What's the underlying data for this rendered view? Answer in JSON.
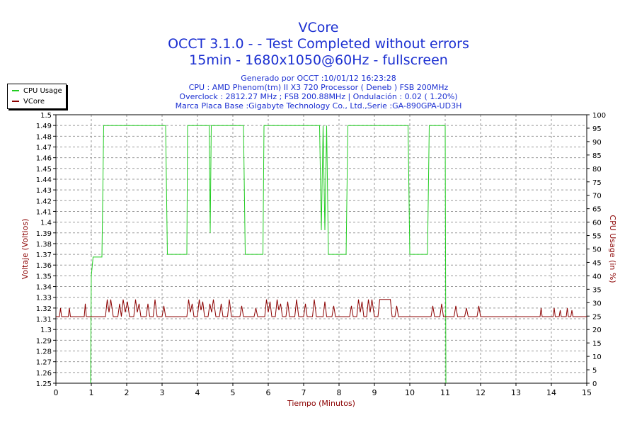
{
  "chart": {
    "title_lines": [
      "VCore",
      "OCCT 3.1.0 -  - Test Completed without errors",
      "15min - 1680x1050@60Hz - fullscreen"
    ],
    "subtitle_lines": [
      "Generado por OCCT :10/01/12 16:23:28",
      "CPU : AMD Phenom(tm) II X3 720 Processor ( Deneb ) FSB 200MHz",
      "Overclock : 2812.27 MHz ; FSB 200.88MHz | Ondulación : 0.02 ( 1.20%)",
      "Marca Placa Base :Gigabyte Technology Co., Ltd.,Serie :GA-890GPA-UD3H"
    ]
  },
  "legend": {
    "placement": "top-left",
    "items": [
      {
        "label": "CPU Usage",
        "color": "#22cc22"
      },
      {
        "label": "VCore",
        "color": "#8b0000"
      }
    ]
  },
  "chart_data": {
    "type": "line",
    "xlabel": "Tiempo (Minutos)",
    "ylabel": "Voltaje (Voltios)",
    "y2label": "CPU Usage (in %)",
    "xlim": [
      0,
      15
    ],
    "ylim": [
      1.25,
      1.5
    ],
    "y2lim": [
      0,
      100
    ],
    "grid": true,
    "x_ticks": [
      "0",
      "1",
      "2",
      "3",
      "4",
      "5",
      "6",
      "7",
      "8",
      "9",
      "10",
      "11",
      "12",
      "13",
      "14",
      "15"
    ],
    "y_ticks": [
      "1.25",
      "1.26",
      "1.27",
      "1.28",
      "1.29",
      "1.3",
      "1.31",
      "1.32",
      "1.33",
      "1.34",
      "1.35",
      "1.36",
      "1.37",
      "1.38",
      "1.39",
      "1.4",
      "1.41",
      "1.42",
      "1.43",
      "1.44",
      "1.45",
      "1.46",
      "1.47",
      "1.48",
      "1.49",
      "1.5"
    ],
    "y2_ticks": [
      "0",
      "5",
      "10",
      "15",
      "20",
      "25",
      "30",
      "35",
      "40",
      "45",
      "50",
      "55",
      "60",
      "65",
      "70",
      "75",
      "80",
      "85",
      "90",
      "95",
      "100"
    ],
    "series": [
      {
        "name": "CPU Usage",
        "axis": "right",
        "color": "#22cc22",
        "points": [
          [
            0.98,
            0
          ],
          [
            1.0,
            40
          ],
          [
            1.05,
            47
          ],
          [
            1.3,
            47
          ],
          [
            1.35,
            96
          ],
          [
            3.1,
            96
          ],
          [
            3.15,
            48
          ],
          [
            3.7,
            48
          ],
          [
            3.72,
            96
          ],
          [
            4.33,
            96
          ],
          [
            4.36,
            56
          ],
          [
            4.39,
            96
          ],
          [
            5.3,
            96
          ],
          [
            5.35,
            48
          ],
          [
            5.85,
            48
          ],
          [
            5.88,
            96
          ],
          [
            7.45,
            96
          ],
          [
            7.5,
            57
          ],
          [
            7.55,
            96
          ],
          [
            7.6,
            57
          ],
          [
            7.65,
            96
          ],
          [
            7.7,
            48
          ],
          [
            8.2,
            48
          ],
          [
            8.25,
            96
          ],
          [
            9.95,
            96
          ],
          [
            10.0,
            48
          ],
          [
            10.5,
            48
          ],
          [
            10.55,
            96
          ],
          [
            11.0,
            96
          ],
          [
            11.02,
            0
          ]
        ]
      },
      {
        "name": "VCore",
        "axis": "left",
        "color": "#8b0000",
        "points": [
          [
            0,
            1.312
          ],
          [
            0.1,
            1.312
          ],
          [
            0.13,
            1.32
          ],
          [
            0.16,
            1.312
          ],
          [
            0.35,
            1.312
          ],
          [
            0.38,
            1.32
          ],
          [
            0.41,
            1.312
          ],
          [
            0.8,
            1.312
          ],
          [
            0.83,
            1.324
          ],
          [
            0.86,
            1.312
          ],
          [
            1.4,
            1.312
          ],
          [
            1.45,
            1.328
          ],
          [
            1.5,
            1.316
          ],
          [
            1.55,
            1.328
          ],
          [
            1.62,
            1.312
          ],
          [
            1.75,
            1.312
          ],
          [
            1.8,
            1.324
          ],
          [
            1.85,
            1.312
          ],
          [
            1.9,
            1.328
          ],
          [
            1.96,
            1.316
          ],
          [
            2.02,
            1.326
          ],
          [
            2.08,
            1.312
          ],
          [
            2.2,
            1.312
          ],
          [
            2.25,
            1.328
          ],
          [
            2.3,
            1.316
          ],
          [
            2.35,
            1.324
          ],
          [
            2.4,
            1.312
          ],
          [
            2.55,
            1.312
          ],
          [
            2.6,
            1.324
          ],
          [
            2.65,
            1.312
          ],
          [
            2.75,
            1.312
          ],
          [
            2.8,
            1.328
          ],
          [
            2.86,
            1.312
          ],
          [
            3.0,
            1.312
          ],
          [
            3.05,
            1.322
          ],
          [
            3.1,
            1.312
          ],
          [
            3.7,
            1.312
          ],
          [
            3.75,
            1.328
          ],
          [
            3.8,
            1.316
          ],
          [
            3.85,
            1.324
          ],
          [
            3.9,
            1.312
          ],
          [
            4.0,
            1.312
          ],
          [
            4.05,
            1.328
          ],
          [
            4.1,
            1.318
          ],
          [
            4.15,
            1.326
          ],
          [
            4.2,
            1.312
          ],
          [
            4.3,
            1.312
          ],
          [
            4.35,
            1.324
          ],
          [
            4.4,
            1.316
          ],
          [
            4.45,
            1.328
          ],
          [
            4.52,
            1.312
          ],
          [
            4.62,
            1.312
          ],
          [
            4.67,
            1.324
          ],
          [
            4.72,
            1.312
          ],
          [
            4.85,
            1.312
          ],
          [
            4.9,
            1.328
          ],
          [
            4.96,
            1.312
          ],
          [
            5.2,
            1.312
          ],
          [
            5.25,
            1.322
          ],
          [
            5.3,
            1.312
          ],
          [
            5.6,
            1.312
          ],
          [
            5.65,
            1.32
          ],
          [
            5.7,
            1.312
          ],
          [
            5.9,
            1.312
          ],
          [
            5.95,
            1.328
          ],
          [
            6.0,
            1.316
          ],
          [
            6.05,
            1.326
          ],
          [
            6.1,
            1.312
          ],
          [
            6.2,
            1.312
          ],
          [
            6.25,
            1.328
          ],
          [
            6.3,
            1.318
          ],
          [
            6.35,
            1.324
          ],
          [
            6.4,
            1.312
          ],
          [
            6.5,
            1.312
          ],
          [
            6.55,
            1.326
          ],
          [
            6.6,
            1.312
          ],
          [
            6.75,
            1.312
          ],
          [
            6.8,
            1.328
          ],
          [
            6.86,
            1.312
          ],
          [
            7.0,
            1.312
          ],
          [
            7.05,
            1.324
          ],
          [
            7.1,
            1.312
          ],
          [
            7.25,
            1.312
          ],
          [
            7.3,
            1.328
          ],
          [
            7.36,
            1.312
          ],
          [
            7.55,
            1.312
          ],
          [
            7.6,
            1.326
          ],
          [
            7.65,
            1.312
          ],
          [
            7.8,
            1.312
          ],
          [
            7.85,
            1.322
          ],
          [
            7.9,
            1.312
          ],
          [
            8.3,
            1.312
          ],
          [
            8.35,
            1.322
          ],
          [
            8.4,
            1.312
          ],
          [
            8.5,
            1.312
          ],
          [
            8.55,
            1.328
          ],
          [
            8.6,
            1.316
          ],
          [
            8.65,
            1.326
          ],
          [
            8.7,
            1.312
          ],
          [
            8.78,
            1.312
          ],
          [
            8.83,
            1.328
          ],
          [
            8.88,
            1.316
          ],
          [
            8.93,
            1.328
          ],
          [
            9.0,
            1.312
          ],
          [
            9.1,
            1.312
          ],
          [
            9.15,
            1.328
          ],
          [
            9.45,
            1.328
          ],
          [
            9.5,
            1.312
          ],
          [
            9.58,
            1.312
          ],
          [
            9.63,
            1.322
          ],
          [
            9.68,
            1.312
          ],
          [
            10.6,
            1.312
          ],
          [
            10.65,
            1.322
          ],
          [
            10.7,
            1.312
          ],
          [
            10.85,
            1.312
          ],
          [
            10.9,
            1.324
          ],
          [
            10.95,
            1.312
          ],
          [
            11.25,
            1.312
          ],
          [
            11.3,
            1.322
          ],
          [
            11.35,
            1.312
          ],
          [
            11.55,
            1.312
          ],
          [
            11.6,
            1.32
          ],
          [
            11.65,
            1.312
          ],
          [
            11.9,
            1.312
          ],
          [
            11.95,
            1.322
          ],
          [
            12.0,
            1.312
          ],
          [
            13.68,
            1.312
          ],
          [
            13.71,
            1.32
          ],
          [
            13.74,
            1.312
          ],
          [
            14.05,
            1.312
          ],
          [
            14.08,
            1.32
          ],
          [
            14.11,
            1.312
          ],
          [
            14.22,
            1.312
          ],
          [
            14.25,
            1.318
          ],
          [
            14.28,
            1.312
          ],
          [
            14.42,
            1.312
          ],
          [
            14.45,
            1.32
          ],
          [
            14.48,
            1.312
          ],
          [
            14.55,
            1.312
          ],
          [
            14.58,
            1.318
          ],
          [
            14.61,
            1.312
          ],
          [
            15,
            1.312
          ]
        ]
      }
    ]
  }
}
